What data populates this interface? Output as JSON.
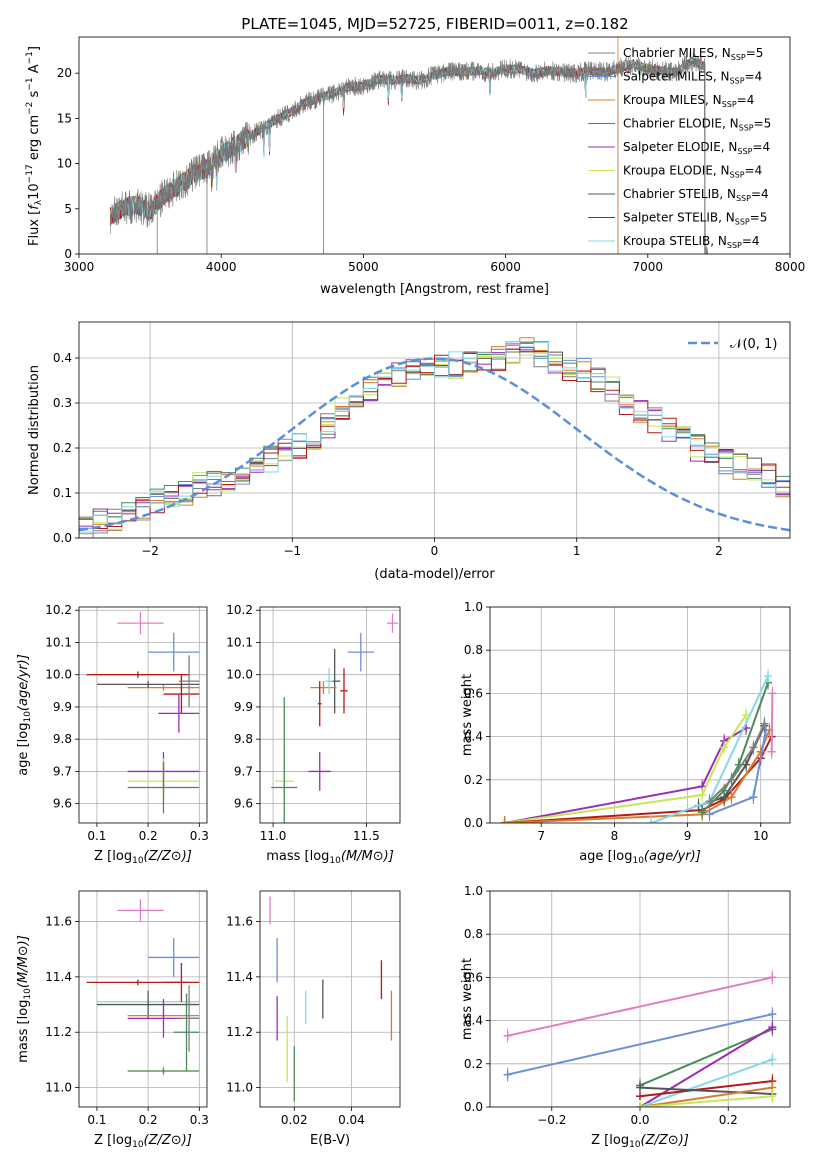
{
  "title": "PLATE=1045, MJD=52725, FIBERID=0011, z=0.182",
  "colors": {
    "Chabrier MILES": "#7f7f7f",
    "Salpeter MILES": "#6a8fdb",
    "Kroupa MILES": "#d87d2a",
    "Chabrier ELODIE": "#4c8a5b",
    "Salpeter ELODIE": "#9b2db6",
    "Kroupa ELODIE": "#c8e65a",
    "Chabrier STELIB": "#555555",
    "Salpeter STELIB": "#b51a1a",
    "Kroupa STELIB": "#86d8e6",
    "pink": "#e07fbf"
  },
  "chart_data": [
    {
      "type": "line",
      "title": "PLATE=1045, MJD=52725, FIBERID=0011, z=0.182",
      "xlabel": "wavelength [Angstrom, rest frame]",
      "ylabel": "Flux [f_λ 10^-17 erg cm^-2 s^-1 A^-1]",
      "xlim": [
        3000,
        8000
      ],
      "ylim": [
        0,
        24
      ],
      "xticks": [
        "3000",
        "4000",
        "5000",
        "6000",
        "7000",
        "8000"
      ],
      "yticks": [
        "0",
        "5",
        "10",
        "15",
        "20"
      ],
      "grid": false,
      "legend_position": "right",
      "series": [
        {
          "name": "Chabrier MILES, N_SSP=5",
          "sub": "SSP",
          "base": "Chabrier MILES, N",
          "tail": "=5"
        },
        {
          "name": "Salpeter MILES, N_SSP=4",
          "sub": "SSP",
          "base": "Salpeter MILES, N",
          "tail": "=4"
        },
        {
          "name": "Kroupa MILES, N_SSP=4",
          "sub": "SSP",
          "base": "Kroupa MILES, N",
          "tail": "=4"
        },
        {
          "name": "Chabrier ELODIE, N_SSP=5",
          "sub": "SSP",
          "base": "Chabrier ELODIE, N",
          "tail": "=5"
        },
        {
          "name": "Salpeter ELODIE, N_SSP=4",
          "sub": "SSP",
          "base": "Salpeter ELODIE, N",
          "tail": "=4"
        },
        {
          "name": "Kroupa ELODIE, N_SSP=4",
          "sub": "SSP",
          "base": "Kroupa ELODIE, N",
          "tail": "=4"
        },
        {
          "name": "Chabrier STELIB, N_SSP=4",
          "sub": "SSP",
          "base": "Chabrier STELIB, N",
          "tail": "=4"
        },
        {
          "name": "Salpeter STELIB, N_SSP=5",
          "sub": "SSP",
          "base": "Salpeter STELIB, N",
          "tail": "=5"
        },
        {
          "name": "Kroupa STELIB, N_SSP=4",
          "sub": "SSP",
          "base": "Kroupa STELIB, N",
          "tail": "=4"
        }
      ],
      "spectrum_envelope": {
        "x": [
          3220,
          3300,
          3400,
          3500,
          3600,
          3700,
          3800,
          3900,
          4000,
          4100,
          4200,
          4300,
          4400,
          4500,
          4600,
          4700,
          4800,
          4900,
          5000,
          5100,
          5200,
          5300,
          5400,
          5500,
          5600,
          5700,
          5800,
          5900,
          6000,
          6100,
          6200,
          6300,
          6400,
          6500,
          6600,
          6700,
          6800,
          6900,
          7000,
          7100,
          7200,
          7300,
          7400
        ],
        "y": [
          4.2,
          5.0,
          5.4,
          4.8,
          6.5,
          7.5,
          8.8,
          9.5,
          11.0,
          12.0,
          13.0,
          14.0,
          15.0,
          15.8,
          16.8,
          17.3,
          17.8,
          18.5,
          18.6,
          19.3,
          19.2,
          19.4,
          19.2,
          19.8,
          20.2,
          20.1,
          20.3,
          20.0,
          20.5,
          20.4,
          20.0,
          20.3,
          20.1,
          20.0,
          20.3,
          20.1,
          20.6,
          21.0,
          20.5,
          20.3,
          20.1,
          21.3,
          20.8
        ]
      }
    },
    {
      "type": "histogram",
      "xlabel": "(data-model)/error",
      "ylabel": "Normed distribution",
      "xlim": [
        -2.5,
        2.5
      ],
      "ylim": [
        0,
        0.48
      ],
      "xticks": [
        "−2",
        "−1",
        "0",
        "1",
        "2"
      ],
      "yticks": [
        "0.0",
        "0.1",
        "0.2",
        "0.3",
        "0.4"
      ],
      "grid": true,
      "legend_position": "top-right",
      "reference_curve": {
        "name": "𝒩(0, 1)",
        "mean": 0,
        "sigma": 1
      },
      "bin_width": 0.1,
      "bin_start": -2.5,
      "histogram_shape": [
        0.03,
        0.04,
        0.045,
        0.055,
        0.065,
        0.08,
        0.09,
        0.1,
        0.115,
        0.12,
        0.13,
        0.145,
        0.16,
        0.175,
        0.19,
        0.205,
        0.22,
        0.25,
        0.29,
        0.31,
        0.33,
        0.35,
        0.36,
        0.37,
        0.375,
        0.38,
        0.385,
        0.39,
        0.395,
        0.4,
        0.41,
        0.42,
        0.41,
        0.395,
        0.38,
        0.37,
        0.35,
        0.33,
        0.3,
        0.28,
        0.26,
        0.24,
        0.22,
        0.2,
        0.185,
        0.17,
        0.16,
        0.15,
        0.14,
        0.12,
        0.1
      ]
    },
    {
      "type": "scatter",
      "xlabel": "Z [log10(Z/Z⊙)]",
      "ylabel": "age  [log10(age/yr)]",
      "xlim": [
        0.065,
        0.315
      ],
      "ylim": [
        9.54,
        10.21
      ],
      "xticks": [
        "0.1",
        "0.2",
        "0.3"
      ],
      "yticks": [
        "9.6",
        "9.7",
        "9.8",
        "9.9",
        "10.0",
        "10.1",
        "10.2"
      ],
      "grid": true,
      "points": [
        {
          "c": "pink",
          "x": 0.185,
          "y": 10.16,
          "xe": 0.045,
          "ye": 0.035
        },
        {
          "c": "Salpeter MILES",
          "x": 0.25,
          "y": 10.07,
          "xe": 0.05,
          "ye": 0.06
        },
        {
          "c": "Salpeter STELIB",
          "x": 0.18,
          "y": 10.0,
          "xe": 0.1,
          "ye": 0.01
        },
        {
          "c": "Kroupa MILES",
          "x": 0.23,
          "y": 9.96,
          "xe": 0.07,
          "ye": 0.01
        },
        {
          "c": "Chabrier STELIB",
          "x": 0.2,
          "y": 9.97,
          "xe": 0.1,
          "ye": 0.01
        },
        {
          "c": "Salpeter STELIB",
          "x": 0.265,
          "y": 9.94,
          "xe": 0.035,
          "ye": 0.06
        },
        {
          "c": "Chabrier MILES",
          "x": 0.28,
          "y": 9.98,
          "xe": 0.02,
          "ye": 0.08
        },
        {
          "c": "Salpeter ELODIE",
          "x": 0.26,
          "y": 9.88,
          "xe": 0.04,
          "ye": 0.06
        },
        {
          "c": "Salpeter ELODIE",
          "x": 0.23,
          "y": 9.7,
          "xe": 0.07,
          "ye": 0.06
        },
        {
          "c": "Kroupa ELODIE",
          "x": 0.23,
          "y": 9.67,
          "xe": 0.07,
          "ye": 0.07
        },
        {
          "c": "Chabrier ELODIE",
          "x": 0.23,
          "y": 9.65,
          "xe": 0.07,
          "ye": 0.08
        }
      ]
    },
    {
      "type": "scatter",
      "xlabel": "mass [log10(M/M⊙)]",
      "ylabel": "",
      "xlim": [
        10.93,
        11.68
      ],
      "ylim": [
        9.54,
        10.21
      ],
      "xticks": [
        "11.0",
        "11.5"
      ],
      "yticks": [
        "9.6",
        "9.7",
        "9.8",
        "9.9",
        "10.0",
        "10.1",
        "10.2"
      ],
      "grid": true,
      "points": [
        {
          "c": "pink",
          "x": 11.64,
          "y": 10.16,
          "xe": 0.03,
          "ye": 0.03
        },
        {
          "c": "Salpeter MILES",
          "x": 11.47,
          "y": 10.07,
          "xe": 0.07,
          "ye": 0.06
        },
        {
          "c": "Chabrier STELIB",
          "x": 11.33,
          "y": 9.98,
          "xe": 0.03,
          "ye": 0.1
        },
        {
          "c": "Kroupa MILES",
          "x": 11.27,
          "y": 9.96,
          "xe": 0.07,
          "ye": 0.02
        },
        {
          "c": "Salpeter STELIB",
          "x": 11.38,
          "y": 9.95,
          "xe": 0.02,
          "ye": 0.07
        },
        {
          "c": "Kroupa STELIB",
          "x": 11.3,
          "y": 9.98,
          "xe": 0.02,
          "ye": 0.04
        },
        {
          "c": "Salpeter STELIB",
          "x": 11.25,
          "y": 9.91,
          "xe": 0.01,
          "ye": 0.07
        },
        {
          "c": "Salpeter ELODIE",
          "x": 11.25,
          "y": 9.7,
          "xe": 0.06,
          "ye": 0.06
        },
        {
          "c": "Kroupa ELODIE",
          "x": 11.06,
          "y": 9.67,
          "xe": 0.05,
          "ye": 0.07
        },
        {
          "c": "Chabrier ELODIE",
          "x": 11.06,
          "y": 9.65,
          "xe": 0.07,
          "ye": 0.28
        }
      ]
    },
    {
      "type": "line",
      "xlabel": "age  [log10(age/yr)]",
      "ylabel": "mass weight",
      "xlim": [
        6.3,
        10.4
      ],
      "ylim": [
        0.0,
        1.0
      ],
      "xticks": [
        "7",
        "8",
        "9",
        "10"
      ],
      "yticks": [
        "0.0",
        "0.2",
        "0.4",
        "0.6",
        "0.8",
        "1.0"
      ],
      "grid": true,
      "series": [
        {
          "c": "Salpeter ELODIE",
          "x": [
            6.5,
            9.2,
            9.5,
            9.8
          ],
          "y": [
            0.0,
            0.17,
            0.38,
            0.44
          ]
        },
        {
          "c": "Kroupa ELODIE",
          "x": [
            6.5,
            9.2,
            9.5,
            9.8
          ],
          "y": [
            0.0,
            0.13,
            0.35,
            0.5
          ]
        },
        {
          "c": "Salpeter STELIB",
          "x": [
            6.5,
            9.2,
            9.5,
            10.0,
            10.15
          ],
          "y": [
            0.0,
            0.06,
            0.11,
            0.3,
            0.4
          ]
        },
        {
          "c": "Kroupa MILES",
          "x": [
            6.5,
            9.2,
            9.6,
            10.0,
            10.12
          ],
          "y": [
            0.0,
            0.04,
            0.12,
            0.33,
            0.43
          ]
        },
        {
          "c": "Chabrier STELIB",
          "x": [
            9.15,
            9.5,
            9.8,
            10.05
          ],
          "y": [
            0.08,
            0.12,
            0.27,
            0.45
          ]
        },
        {
          "c": "Chabrier ELODIE",
          "x": [
            9.2,
            9.5,
            9.7,
            10.1
          ],
          "y": [
            0.05,
            0.15,
            0.27,
            0.65
          ]
        },
        {
          "c": "Salpeter MILES",
          "x": [
            9.3,
            9.9,
            10.07
          ],
          "y": [
            0.04,
            0.12,
            0.43
          ]
        },
        {
          "c": "Kroupa STELIB",
          "x": [
            8.5,
            9.3,
            10.1
          ],
          "y": [
            0.0,
            0.1,
            0.68
          ]
        },
        {
          "c": "Chabrier MILES",
          "x": [
            9.3,
            9.6,
            9.9,
            10.05
          ],
          "y": [
            0.1,
            0.2,
            0.35,
            0.46
          ]
        },
        {
          "c": "pink",
          "x": [
            10.15,
            10.16
          ],
          "y": [
            0.33,
            0.6
          ]
        }
      ]
    },
    {
      "type": "scatter",
      "xlabel": "Z [log10(Z/Z⊙)]",
      "ylabel": "mass [log10(M/M⊙)]",
      "xlim": [
        0.065,
        0.315
      ],
      "ylim": [
        10.93,
        11.71
      ],
      "xticks": [
        "0.1",
        "0.2",
        "0.3"
      ],
      "yticks": [
        "11.0",
        "11.2",
        "11.4",
        "11.6"
      ],
      "grid": true,
      "points": [
        {
          "c": "pink",
          "x": 0.185,
          "y": 11.64,
          "xe": 0.045,
          "ye": 0.04
        },
        {
          "c": "Salpeter MILES",
          "x": 0.25,
          "y": 11.47,
          "xe": 0.05,
          "ye": 0.07
        },
        {
          "c": "Salpeter STELIB",
          "x": 0.18,
          "y": 11.38,
          "xe": 0.1,
          "ye": 0.01
        },
        {
          "c": "Kroupa STELIB",
          "x": 0.2,
          "y": 11.31,
          "xe": 0.1,
          "ye": 0.01
        },
        {
          "c": "Chabrier STELIB",
          "x": 0.2,
          "y": 11.3,
          "xe": 0.1,
          "ye": 0.05
        },
        {
          "c": "Salpeter STELIB",
          "x": 0.265,
          "y": 11.38,
          "xe": 0.035,
          "ye": 0.07
        },
        {
          "c": "Kroupa MILES",
          "x": 0.23,
          "y": 11.26,
          "xe": 0.07,
          "ye": 0.01
        },
        {
          "c": "Salpeter ELODIE",
          "x": 0.23,
          "y": 11.25,
          "xe": 0.07,
          "ye": 0.07
        },
        {
          "c": "Chabrier ELODIE",
          "x": 0.275,
          "y": 11.2,
          "xe": 0.025,
          "ye": 0.14
        },
        {
          "c": "Chabrier MILES",
          "x": 0.28,
          "y": 11.25,
          "xe": 0.02,
          "ye": 0.12
        },
        {
          "c": "Kroupa ELODIE",
          "x": 0.23,
          "y": 11.06,
          "xe": 0.07,
          "ye": 0.02
        },
        {
          "c": "Chabrier ELODIE",
          "x": 0.23,
          "y": 11.06,
          "xe": 0.07,
          "ye": 0.01
        }
      ]
    },
    {
      "type": "scatter",
      "xlabel": "E(B-V)",
      "ylabel": "",
      "xlim": [
        0.008,
        0.057
      ],
      "ylim": [
        10.93,
        11.71
      ],
      "xticks": [
        "0.02",
        "0.04"
      ],
      "yticks": [
        "11.0",
        "11.2",
        "11.4",
        "11.6"
      ],
      "grid": true,
      "points": [
        {
          "c": "pink",
          "x": 0.0115,
          "y": 11.64,
          "xe": 0,
          "ye": 0.05
        },
        {
          "c": "Salpeter MILES",
          "x": 0.014,
          "y": 11.46,
          "xe": 0,
          "ye": 0.08
        },
        {
          "c": "Salpeter ELODIE",
          "x": 0.014,
          "y": 11.25,
          "xe": 0,
          "ye": 0.08
        },
        {
          "c": "Kroupa ELODIE",
          "x": 0.0175,
          "y": 11.14,
          "xe": 0,
          "ye": 0.12
        },
        {
          "c": "Chabrier ELODIE",
          "x": 0.02,
          "y": 11.05,
          "xe": 0,
          "ye": 0.1
        },
        {
          "c": "Kroupa STELIB",
          "x": 0.024,
          "y": 11.29,
          "xe": 0,
          "ye": 0.06
        },
        {
          "c": "Chabrier STELIB",
          "x": 0.03,
          "y": 11.32,
          "xe": 0,
          "ye": 0.07
        },
        {
          "c": "Salpeter STELIB",
          "x": 0.0505,
          "y": 11.39,
          "xe": 0,
          "ye": 0.07
        },
        {
          "c": "Kroupa MILES",
          "x": 0.054,
          "y": 11.26,
          "xe": 0,
          "ye": 0.09
        }
      ]
    },
    {
      "type": "line",
      "xlabel": "Z [log10(Z/Z⊙)]",
      "ylabel": "mass weight",
      "xlim": [
        -0.34,
        0.34
      ],
      "ylim": [
        0.0,
        1.0
      ],
      "xticks": [
        "−0.2",
        "0.0",
        "0.2"
      ],
      "yticks": [
        "0.0",
        "0.2",
        "0.4",
        "0.6",
        "0.8",
        "1.0"
      ],
      "grid": true,
      "series": [
        {
          "c": "pink",
          "x": [
            -0.3,
            0.3
          ],
          "y": [
            0.33,
            0.6
          ]
        },
        {
          "c": "Salpeter MILES",
          "x": [
            -0.3,
            0.3
          ],
          "y": [
            0.15,
            0.43
          ]
        },
        {
          "c": "Chabrier ELODIE",
          "x": [
            0.0,
            0.3
          ],
          "y": [
            0.1,
            0.36
          ]
        },
        {
          "c": "Salpeter ELODIE",
          "x": [
            0.0,
            0.3
          ],
          "y": [
            0.0,
            0.37
          ]
        },
        {
          "c": "Kroupa STELIB",
          "x": [
            0.0,
            0.3
          ],
          "y": [
            0.0,
            0.22
          ]
        },
        {
          "c": "Salpeter STELIB",
          "x": [
            0.0,
            0.3
          ],
          "y": [
            0.05,
            0.12
          ]
        },
        {
          "c": "Chabrier STELIB",
          "x": [
            0.0,
            0.3
          ],
          "y": [
            0.09,
            0.06
          ]
        },
        {
          "c": "Kroupa MILES",
          "x": [
            0.0,
            0.3
          ],
          "y": [
            0.0,
            0.09
          ]
        },
        {
          "c": "Kroupa ELODIE",
          "x": [
            0.0,
            0.3
          ],
          "y": [
            0.0,
            0.05
          ]
        }
      ]
    }
  ]
}
